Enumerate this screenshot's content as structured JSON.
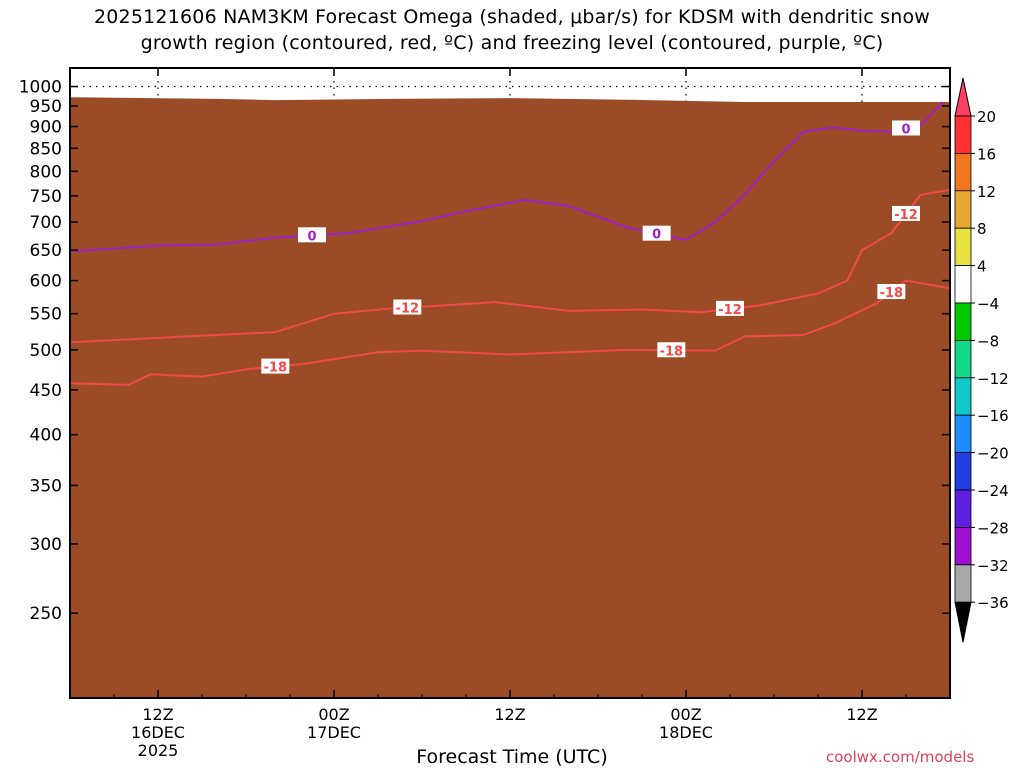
{
  "title_line1": "2025121606 NAM3KM Forecast Omega (shaded, μbar/s) for KDSM with dendritic snow",
  "title_line2": "growth region (contoured, red, ºC) and freezing level (contoured, purple, ºC)",
  "credit": "coolwx.com/models",
  "chart_data": {
    "type": "heatmap",
    "title": "2025121606 NAM3KM Forecast Omega (shaded, μbar/s) for KDSM with dendritic snow growth region (contoured, red, ºC) and freezing level (contoured, purple, ºC)",
    "xlabel": "Forecast Time (UTC)",
    "ylabel": "",
    "x_unit": "forecast hour from 2025-12-16 06Z",
    "xlim": [
      6,
      66
    ],
    "x_ticks": [
      {
        "hour": 12,
        "lines": [
          "12Z",
          "16DEC",
          "2025"
        ]
      },
      {
        "hour": 24,
        "lines": [
          "00Z",
          "17DEC"
        ]
      },
      {
        "hour": 36,
        "lines": [
          "12Z"
        ]
      },
      {
        "hour": 48,
        "lines": [
          "00Z",
          "18DEC"
        ]
      },
      {
        "hour": 60,
        "lines": [
          "12Z"
        ]
      }
    ],
    "y_unit": "hPa",
    "y_scale": "log",
    "ylim": [
      1050,
      200
    ],
    "y_ticks": [
      250,
      300,
      350,
      400,
      450,
      500,
      550,
      600,
      650,
      700,
      750,
      800,
      850,
      900,
      950,
      1000
    ],
    "grid": true,
    "colorbar": {
      "label_values": [
        "20",
        "16",
        "12",
        "8",
        "4",
        "−4",
        "−8",
        "−12",
        "−16",
        "−20",
        "−24",
        "−28",
        "−32",
        "−36"
      ],
      "colors": [
        "#ff4060",
        "#ff3030",
        "#ee7720",
        "#e6a830",
        "#e6e040",
        "#ffffff",
        "#00c800",
        "#10d888",
        "#10c8c8",
        "#1e8cff",
        "#2040e6",
        "#6020e0",
        "#a010d0",
        "#a8a8a8",
        "#000000"
      ]
    },
    "contours": [
      {
        "label": "-18",
        "color": "#f04a4a",
        "points": [
          [
            6,
            458
          ],
          [
            10,
            456
          ],
          [
            11.5,
            469
          ],
          [
            15,
            466
          ],
          [
            18,
            475
          ],
          [
            22,
            482
          ],
          [
            27,
            497
          ],
          [
            30,
            499
          ],
          [
            36,
            494
          ],
          [
            44,
            500
          ],
          [
            50,
            499
          ],
          [
            52,
            518
          ],
          [
            56,
            520
          ],
          [
            58,
            535
          ],
          [
            61,
            565
          ],
          [
            63,
            600
          ],
          [
            66,
            588
          ]
        ]
      },
      {
        "label": "-12",
        "color": "#f04a4a",
        "points": [
          [
            6,
            510
          ],
          [
            14,
            518
          ],
          [
            20,
            524
          ],
          [
            24,
            550
          ],
          [
            28,
            558
          ],
          [
            30,
            560
          ],
          [
            35,
            567
          ],
          [
            40,
            554
          ],
          [
            45,
            556
          ],
          [
            49,
            552
          ],
          [
            53,
            562
          ],
          [
            57,
            580
          ],
          [
            59,
            600
          ],
          [
            60,
            650
          ],
          [
            62,
            680
          ],
          [
            64,
            752
          ],
          [
            66,
            762
          ]
        ]
      },
      {
        "label": "0",
        "color": "#a020c8",
        "points": [
          [
            6,
            648
          ],
          [
            12,
            658
          ],
          [
            16,
            660
          ],
          [
            20,
            672
          ],
          [
            25,
            680
          ],
          [
            30,
            702
          ],
          [
            33,
            720
          ],
          [
            37,
            742
          ],
          [
            40,
            730
          ],
          [
            44,
            690
          ],
          [
            48,
            668
          ],
          [
            50,
            700
          ],
          [
            52,
            752
          ],
          [
            54,
            822
          ],
          [
            56,
            888
          ],
          [
            58,
            898
          ],
          [
            60,
            890
          ],
          [
            62,
            888
          ],
          [
            64,
            903
          ],
          [
            65.5,
            960
          ]
        ]
      }
    ],
    "surface_color": "#9b4b26"
  }
}
